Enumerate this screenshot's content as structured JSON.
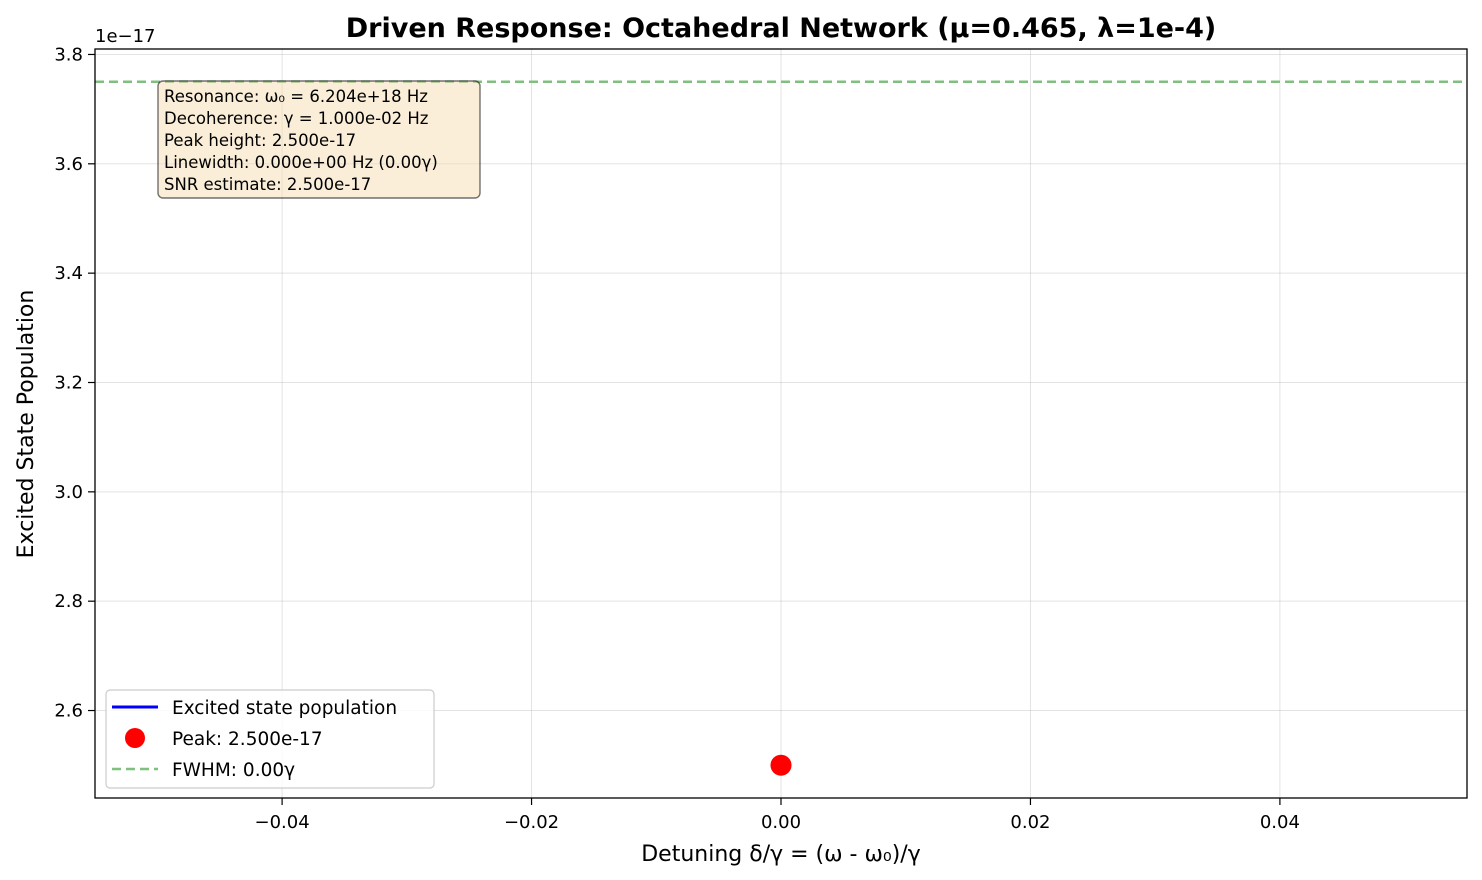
{
  "chart_data": {
    "type": "line",
    "title": "Driven Response: Octahedral Network (μ=0.465, λ=1e-4)",
    "xlabel": "Detuning δ/γ = (ω - ω₀)/γ",
    "ylabel": "Excited State Population",
    "y_offset_label": "1e−17",
    "xlim": [
      -0.055,
      0.055
    ],
    "ylim": [
      2.44,
      3.81
    ],
    "y_scale_exponent": -17,
    "x_ticks": [
      -0.04,
      -0.02,
      0.0,
      0.02,
      0.04
    ],
    "x_tick_labels": [
      "−0.04",
      "−0.02",
      "0.00",
      "0.02",
      "0.04"
    ],
    "y_ticks": [
      2.6,
      2.8,
      3.0,
      3.2,
      3.4,
      3.6,
      3.8
    ],
    "y_tick_labels": [
      "2.6",
      "2.8",
      "3.0",
      "3.2",
      "3.4",
      "3.6",
      "3.8"
    ],
    "grid": true,
    "legend_position": "lower-left",
    "series": [
      {
        "name": "Excited state population",
        "kind": "line",
        "color": "#0000ff",
        "x": [
          0.0
        ],
        "y": [
          2.5
        ]
      },
      {
        "name": "Peak: 2.500e-17",
        "kind": "marker",
        "color": "#ff0000",
        "x": [
          0.0
        ],
        "y": [
          2.5
        ]
      },
      {
        "name": "FWHM: 0.00γ",
        "kind": "hline",
        "color": "#7fbf7f",
        "y": 3.75
      }
    ],
    "annotation": {
      "lines": [
        "Resonance: ω₀ = 6.204e+18 Hz",
        "Decoherence: γ = 1.000e-02 Hz",
        "Peak height: 2.500e-17",
        "Linewidth: 0.000e+00 Hz (0.00γ)",
        "SNR estimate: 2.500e-17"
      ]
    }
  }
}
